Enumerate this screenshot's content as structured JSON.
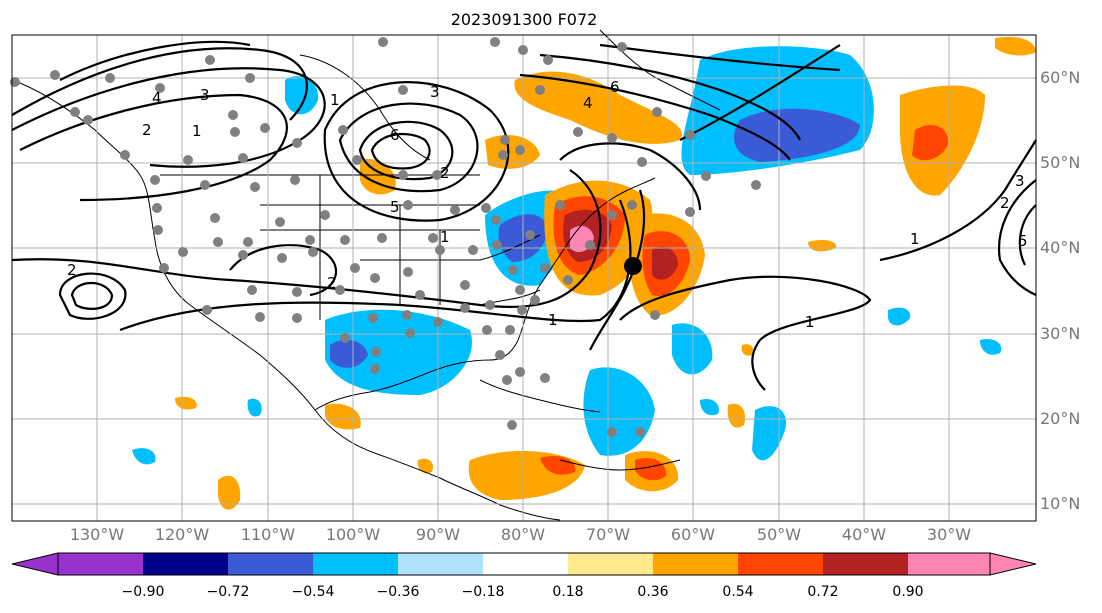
{
  "title": "2023091300 F072",
  "lat_labels": [
    "60°N",
    "50°N",
    "40°N",
    "30°N",
    "20°N",
    "10°N"
  ],
  "lon_labels": [
    "130°W",
    "120°W",
    "110°W",
    "100°W",
    "90°W",
    "80°W",
    "70°W",
    "60°W",
    "50°W",
    "40°W",
    "30°W"
  ],
  "colorbar": {
    "ticks": [
      "−0.90",
      "−0.72",
      "−0.54",
      "−0.36",
      "−0.18",
      "0.18",
      "0.36",
      "0.54",
      "0.72",
      "0.90"
    ],
    "colors": [
      "#9932cc",
      "#00008b",
      "#3b5bd6",
      "#00bfff",
      "#aee2fb",
      "#ffffff",
      "#ffe98a",
      "#ffa500",
      "#ff4500",
      "#b22222",
      "#ff85b3"
    ]
  },
  "contour_labels": [
    "1",
    "2",
    "3",
    "4",
    "5",
    "6",
    "1",
    "2",
    "1",
    "1",
    "4",
    "6",
    "2",
    "3",
    "1",
    "1",
    "2",
    "2",
    "3",
    "5"
  ],
  "colors": {
    "grid": "#b0b0b0",
    "contour": "#000000",
    "dots": "#808080",
    "center_marker": "#000000"
  }
}
